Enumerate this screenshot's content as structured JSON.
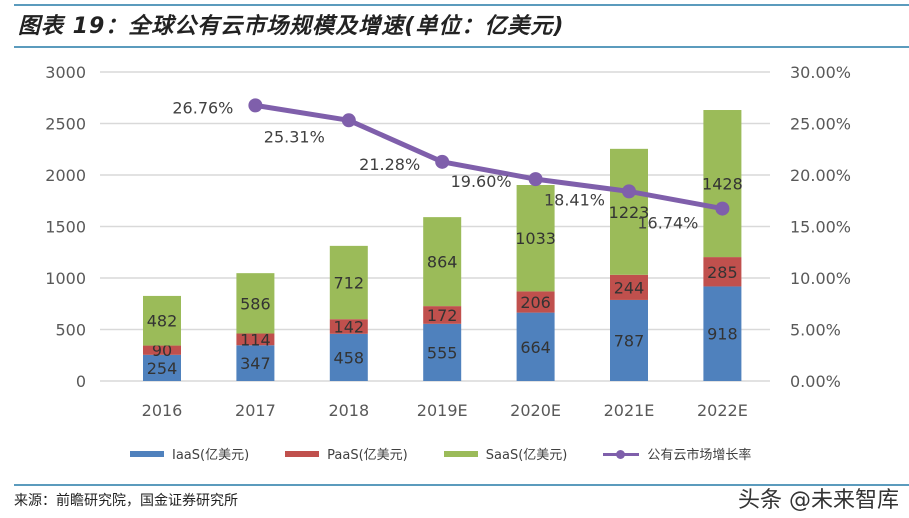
{
  "title": "图表 19：全球公有云市场规模及增速(单位：亿美元)",
  "source": "来源：前瞻研究院，国金证券研究所",
  "watermark": "头条 @未来智库",
  "colors": {
    "iaas": "#4f81bd",
    "paas": "#c0504d",
    "saas": "#9bbb59",
    "growth": "#7f5fab",
    "grid": "#d9d9d9"
  },
  "chart_data": {
    "type": "bar",
    "stacked": true,
    "title": "全球公有云市场规模及增速(单位：亿美元)",
    "categories": [
      "2016",
      "2017",
      "2018",
      "2019E",
      "2020E",
      "2021E",
      "2022E"
    ],
    "series": [
      {
        "name": "IaaS(亿美元)",
        "type": "bar",
        "axis": "left",
        "values": [
          254,
          347,
          458,
          555,
          664,
          787,
          918
        ]
      },
      {
        "name": "PaaS(亿美元)",
        "type": "bar",
        "axis": "left",
        "values": [
          90,
          114,
          142,
          172,
          206,
          244,
          285
        ]
      },
      {
        "name": "SaaS(亿美元)",
        "type": "bar",
        "axis": "left",
        "values": [
          482,
          586,
          712,
          864,
          1033,
          1223,
          1428
        ]
      },
      {
        "name": "公有云市场增长率",
        "type": "line",
        "axis": "right",
        "values": [
          null,
          0.2676,
          0.2531,
          0.2128,
          0.196,
          0.1841,
          0.1674
        ],
        "labels": [
          null,
          "26.76%",
          "25.31%",
          "21.28%",
          "19.60%",
          "18.41%",
          "16.74%"
        ]
      }
    ],
    "y_left": {
      "ylim": [
        0,
        3000
      ],
      "ticks": [
        "0",
        "500",
        "1000",
        "1500",
        "2000",
        "2500",
        "3000"
      ],
      "tick_values": [
        0,
        500,
        1000,
        1500,
        2000,
        2500,
        3000
      ]
    },
    "y_right": {
      "ylim": [
        0,
        0.3
      ],
      "ticks": [
        "0.00%",
        "5.00%",
        "10.00%",
        "15.00%",
        "20.00%",
        "25.00%",
        "30.00%"
      ],
      "tick_values": [
        0,
        0.05,
        0.1,
        0.15,
        0.2,
        0.25,
        0.3
      ]
    },
    "xlabel": "",
    "ylabel": "",
    "grid": true,
    "legend": {
      "position": "bottom",
      "entries": [
        "IaaS(亿美元)",
        "PaaS(亿美元)",
        "SaaS(亿美元)",
        "公有云市场增长率"
      ]
    }
  }
}
